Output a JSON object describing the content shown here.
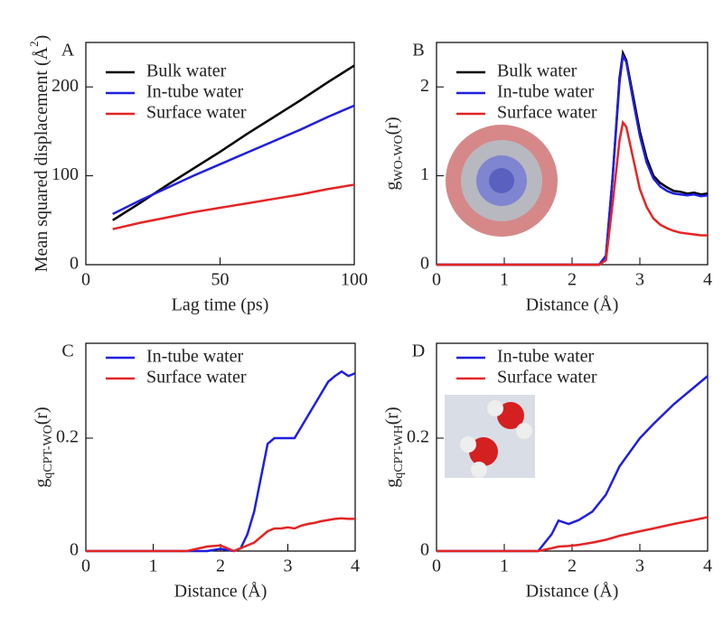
{
  "chart_data": [
    {
      "type": "line",
      "label": "A",
      "xlabel": "Lag time (ps)",
      "ylabel": {
        "main": "Mean squared displacement (Å",
        "sup": "2",
        "tail": ")"
      },
      "xlim": [
        0,
        100
      ],
      "xticks": [
        0,
        50,
        100
      ],
      "ylim": [
        0,
        250
      ],
      "yticks": [
        0,
        100,
        200
      ],
      "x": [
        10,
        20,
        30,
        40,
        50,
        60,
        70,
        80,
        90,
        100
      ],
      "series": [
        {
          "name": "Bulk water",
          "color": "#000000",
          "values": [
            50,
            69,
            89,
            108,
            127,
            147,
            166,
            185,
            205,
            224
          ]
        },
        {
          "name": "In-tube water",
          "color": "#1f1fe0",
          "values": [
            57,
            72,
            86,
            100,
            113,
            126,
            139,
            152,
            166,
            179
          ]
        },
        {
          "name": "Surface water",
          "color": "#e52424",
          "values": [
            40,
            47,
            53,
            59,
            64,
            69,
            74,
            79,
            85,
            90
          ]
        }
      ]
    },
    {
      "type": "line",
      "label": "B",
      "xlabel": "Distance (Å)",
      "ylabel": {
        "main": "g",
        "sub": "WO-WO",
        "tail": "(r)"
      },
      "xlim": [
        0,
        4
      ],
      "xticks": [
        0,
        1,
        2,
        3,
        4
      ],
      "ylim": [
        0,
        2.5
      ],
      "yticks": [
        0,
        1,
        2
      ],
      "x": [
        0,
        0.5,
        1,
        1.5,
        2,
        2.4,
        2.5,
        2.6,
        2.7,
        2.75,
        2.8,
        2.9,
        3,
        3.1,
        3.2,
        3.3,
        3.4,
        3.5,
        3.6,
        3.7,
        3.8,
        3.9,
        4
      ],
      "series": [
        {
          "name": "Bulk water",
          "color": "#000000",
          "values": [
            0,
            0,
            0,
            0,
            0,
            0,
            0.1,
            1.0,
            2.1,
            2.38,
            2.3,
            1.9,
            1.5,
            1.2,
            1.0,
            0.92,
            0.87,
            0.83,
            0.82,
            0.8,
            0.81,
            0.79,
            0.8
          ]
        },
        {
          "name": "In-tube water",
          "color": "#1f1fe0",
          "values": [
            0,
            0,
            0,
            0,
            0,
            0,
            0.1,
            1.0,
            2.05,
            2.35,
            2.28,
            1.85,
            1.45,
            1.15,
            0.97,
            0.88,
            0.83,
            0.8,
            0.79,
            0.78,
            0.79,
            0.77,
            0.78
          ]
        },
        {
          "name": "Surface water",
          "color": "#e52424",
          "values": [
            0,
            0,
            0,
            0,
            0,
            0,
            0.05,
            0.7,
            1.4,
            1.6,
            1.55,
            1.2,
            0.85,
            0.65,
            0.52,
            0.45,
            0.41,
            0.38,
            0.36,
            0.35,
            0.34,
            0.33,
            0.33
          ]
        }
      ]
    },
    {
      "type": "line",
      "label": "C",
      "xlabel": "Distance (Å)",
      "ylabel": {
        "main": "g",
        "sub": "qCPT-WO",
        "tail": "(r)"
      },
      "xlim": [
        0,
        4
      ],
      "xticks": [
        0,
        1,
        2,
        3,
        4
      ],
      "ylim": [
        0,
        0.368
      ],
      "yticks": [
        0,
        0.2
      ],
      "x": [
        0,
        0.5,
        1,
        1.5,
        1.8,
        2,
        2.2,
        2.3,
        2.4,
        2.5,
        2.6,
        2.7,
        2.8,
        2.9,
        3,
        3.1,
        3.2,
        3.3,
        3.4,
        3.5,
        3.6,
        3.7,
        3.8,
        3.9,
        4
      ],
      "series": [
        {
          "name": "In-tube water",
          "color": "#1f1fe0",
          "values": [
            0,
            0,
            0,
            0,
            0,
            0.004,
            0,
            0.005,
            0.03,
            0.07,
            0.13,
            0.19,
            0.2,
            0.2,
            0.2,
            0.2,
            0.22,
            0.24,
            0.26,
            0.28,
            0.3,
            0.31,
            0.318,
            0.31,
            0.315
          ]
        },
        {
          "name": "Surface water",
          "color": "#e52424",
          "values": [
            0,
            0,
            0,
            0,
            0.008,
            0.01,
            0,
            0.005,
            0.01,
            0.015,
            0.025,
            0.035,
            0.04,
            0.04,
            0.042,
            0.04,
            0.045,
            0.048,
            0.05,
            0.053,
            0.055,
            0.057,
            0.058,
            0.057,
            0.057
          ]
        }
      ]
    },
    {
      "type": "line",
      "label": "D",
      "xlabel": "Distance (Å)",
      "ylabel": {
        "main": "g",
        "sub": "qCPT-WH",
        "tail": "(r)"
      },
      "xlim": [
        0,
        4
      ],
      "xticks": [
        0,
        1,
        2,
        3,
        4
      ],
      "ylim": [
        0,
        0.368
      ],
      "yticks": [
        0,
        0.2
      ],
      "x": [
        0,
        0.5,
        1,
        1.5,
        1.7,
        1.8,
        1.95,
        2.1,
        2.3,
        2.5,
        2.7,
        3,
        3.2,
        3.5,
        3.8,
        4
      ],
      "series": [
        {
          "name": "In-tube water",
          "color": "#1f1fe0",
          "values": [
            0,
            0,
            0,
            0,
            0.03,
            0.054,
            0.048,
            0.055,
            0.07,
            0.1,
            0.15,
            0.2,
            0.225,
            0.26,
            0.29,
            0.31
          ]
        },
        {
          "name": "Surface water",
          "color": "#e52424",
          "values": [
            0,
            0,
            0,
            0,
            0.005,
            0.008,
            0.009,
            0.011,
            0.015,
            0.02,
            0.027,
            0.035,
            0.04,
            0.048,
            0.055,
            0.06
          ]
        }
      ]
    }
  ]
}
